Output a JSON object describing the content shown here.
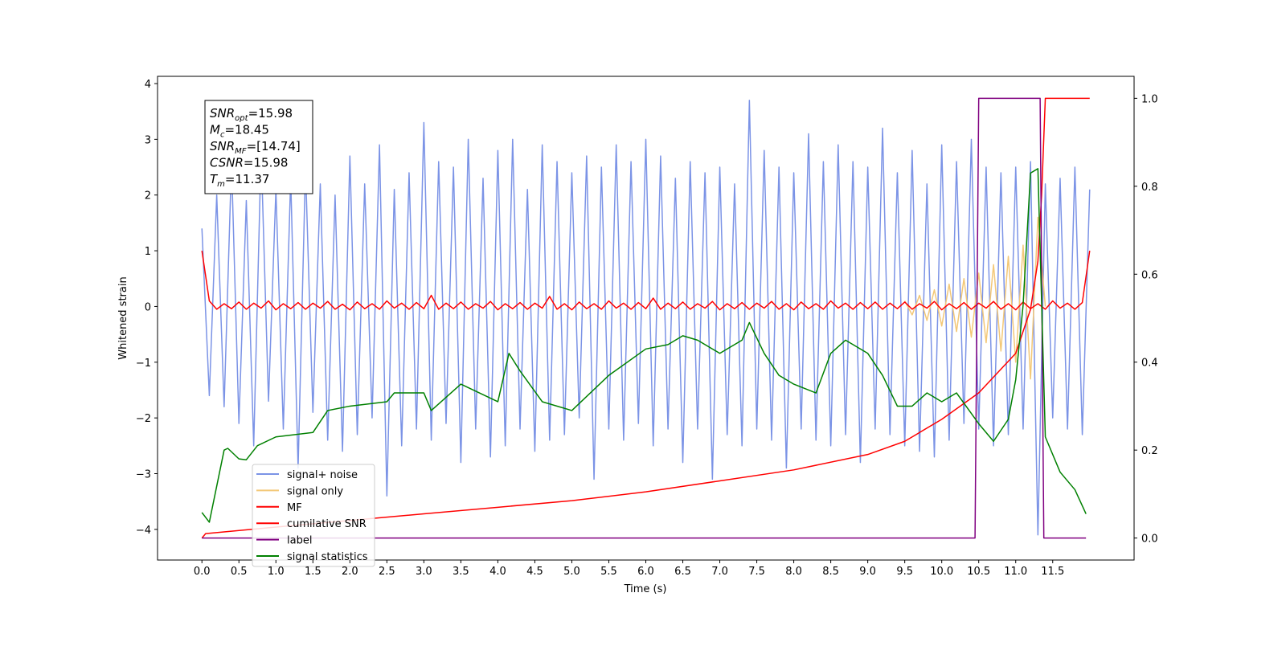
{
  "chart_data": {
    "type": "line",
    "xlabel": "Time (s)",
    "ylabel": "Whitened strain",
    "xlim": [
      -0.6,
      12.6
    ],
    "ylim": [
      -4.55,
      4.13
    ],
    "y2lim": [
      -0.05,
      1.05
    ],
    "xticks": [
      {
        "value": 0,
        "label": "0.0"
      },
      0.5,
      {
        "value": 1,
        "label": "1.0"
      },
      1.5,
      {
        "value": 2,
        "label": "2.0"
      },
      2.5,
      {
        "value": 3,
        "label": "3.0"
      },
      3.5,
      {
        "value": 4,
        "label": "4.0"
      },
      4.5,
      {
        "value": 5,
        "label": "5.0"
      },
      5.5,
      {
        "value": 6,
        "label": "6.0"
      },
      6.5,
      {
        "value": 7,
        "label": "7.0"
      },
      7.5,
      {
        "value": 8,
        "label": "8.0"
      },
      8.5,
      {
        "value": 9,
        "label": "9.0"
      },
      9.5,
      {
        "value": 10,
        "label": "10.0"
      },
      10.5,
      {
        "value": 11,
        "label": "11.0"
      },
      11.5
    ],
    "yticks": [
      {
        "value": -4,
        "label": "−4"
      },
      {
        "value": -3,
        "label": "−3"
      },
      {
        "value": -2,
        "label": "−2"
      },
      {
        "value": -1,
        "label": "−1"
      },
      0,
      1,
      2,
      3,
      4
    ],
    "y2ticks": [
      {
        "value": 0,
        "label": "0.0"
      },
      0.2,
      0.4,
      0.6,
      0.8,
      {
        "value": 1,
        "label": "1.0"
      }
    ],
    "legend": "lower left",
    "annotations": [
      {
        "symbol": "SNR",
        "subscript": "opt",
        "text": "=15.98"
      },
      {
        "symbol": "M",
        "subscript": "c",
        "text": "=18.45"
      },
      {
        "symbol": "SNR",
        "subscript": "MF",
        "text": "=[14.74]"
      },
      {
        "symbol": "CSNR",
        "text": "=15.98"
      },
      {
        "symbol": "T",
        "subscript": "m",
        "text": "=11.37"
      }
    ],
    "series": [
      {
        "name": "signal+ noise",
        "color": "#7b93e6",
        "x": [
          0,
          0.1,
          0.2,
          0.3,
          0.4,
          0.5,
          0.6,
          0.7,
          0.8,
          0.9,
          1,
          1.1,
          1.2,
          1.3,
          1.4,
          1.5,
          1.6,
          1.7,
          1.8,
          1.9,
          2,
          2.1,
          2.2,
          2.3,
          2.4,
          2.5,
          2.6,
          2.7,
          2.8,
          2.9,
          3,
          3.1,
          3.2,
          3.3,
          3.4,
          3.5,
          3.6,
          3.7,
          3.8,
          3.9,
          4,
          4.1,
          4.2,
          4.3,
          4.4,
          4.5,
          4.6,
          4.7,
          4.8,
          4.9,
          5,
          5.1,
          5.2,
          5.3,
          5.4,
          5.5,
          5.6,
          5.7,
          5.8,
          5.9,
          6,
          6.1,
          6.2,
          6.3,
          6.4,
          6.5,
          6.6,
          6.7,
          6.8,
          6.9,
          7,
          7.1,
          7.2,
          7.3,
          7.4,
          7.5,
          7.6,
          7.7,
          7.8,
          7.9,
          8,
          8.1,
          8.2,
          8.3,
          8.4,
          8.5,
          8.6,
          8.7,
          8.8,
          8.9,
          9,
          9.1,
          9.2,
          9.3,
          9.4,
          9.5,
          9.6,
          9.7,
          9.8,
          9.9,
          10,
          10.1,
          10.2,
          10.3,
          10.4,
          10.5,
          10.6,
          10.7,
          10.8,
          10.9,
          11,
          11.1,
          11.2,
          11.3,
          11.4,
          11.5,
          11.6,
          11.7,
          11.8,
          11.9,
          12
        ],
        "values": [
          1.4,
          -1.6,
          2.0,
          -1.8,
          2.6,
          -2.1,
          1.9,
          -2.5,
          2.8,
          -1.7,
          2.1,
          -2.2,
          2.3,
          -2.9,
          2.5,
          -1.9,
          2.2,
          -2.4,
          2.0,
          -2.6,
          2.7,
          -2.3,
          2.2,
          -2.0,
          2.9,
          -3.4,
          2.1,
          -2.5,
          2.4,
          -2.2,
          3.3,
          -2.4,
          2.6,
          -2.1,
          2.5,
          -2.8,
          3.0,
          -2.2,
          2.3,
          -2.7,
          2.8,
          -2.5,
          3.0,
          -2.2,
          2.1,
          -2.6,
          2.9,
          -2.4,
          2.6,
          -2.3,
          2.4,
          -2.0,
          2.7,
          -3.1,
          2.5,
          -2.2,
          2.9,
          -2.4,
          2.6,
          -2.1,
          3.0,
          -2.5,
          2.7,
          -2.2,
          2.3,
          -2.8,
          2.6,
          -2.2,
          2.4,
          -3.1,
          2.5,
          -2.3,
          2.2,
          -2.5,
          3.7,
          -2.2,
          2.8,
          -2.4,
          2.5,
          -2.9,
          2.4,
          -2.2,
          3.1,
          -2.4,
          2.6,
          -2.5,
          2.9,
          -2.3,
          2.6,
          -2.8,
          2.5,
          -2.2,
          3.2,
          -2.3,
          2.4,
          -2.5,
          2.8,
          -2.6,
          2.2,
          -2.7,
          2.9,
          -2.4,
          2.6,
          -2.1,
          3.0,
          -2.2,
          2.5,
          -2.5,
          2.4,
          -2.3,
          2.5,
          -2.2,
          2.6,
          -4.1,
          2.2,
          -2.0,
          2.3,
          -2.2,
          2.5,
          -2.3,
          2.1
        ]
      },
      {
        "name": "signal only",
        "color": "#f3c878",
        "x": [
          9.5,
          9.6,
          9.7,
          9.8,
          9.9,
          10,
          10.1,
          10.2,
          10.3,
          10.4,
          10.5,
          10.6,
          10.7,
          10.8,
          10.9,
          11,
          11.1,
          11.2,
          11.3,
          11.4
        ],
        "values": [
          0.1,
          -0.15,
          0.2,
          -0.25,
          0.3,
          -0.35,
          0.4,
          -0.45,
          0.5,
          -0.55,
          0.6,
          -0.65,
          0.75,
          -0.8,
          0.9,
          -1.0,
          1.1,
          -1.3,
          1.6,
          0
        ]
      },
      {
        "name": "MF",
        "color": "#ff0000",
        "x": [
          0,
          0.1,
          0.2,
          0.3,
          0.4,
          0.5,
          0.6,
          0.7,
          0.8,
          0.9,
          1,
          1.1,
          1.2,
          1.3,
          1.4,
          1.5,
          1.6,
          1.7,
          1.8,
          1.9,
          2,
          2.1,
          2.2,
          2.3,
          2.4,
          2.5,
          2.6,
          2.7,
          2.8,
          2.9,
          3,
          3.1,
          3.2,
          3.3,
          3.4,
          3.5,
          3.6,
          3.7,
          3.8,
          3.9,
          4,
          4.1,
          4.2,
          4.3,
          4.4,
          4.5,
          4.6,
          4.7,
          4.8,
          4.9,
          5,
          5.1,
          5.2,
          5.3,
          5.4,
          5.5,
          5.6,
          5.7,
          5.8,
          5.9,
          6,
          6.1,
          6.2,
          6.3,
          6.4,
          6.5,
          6.6,
          6.7,
          6.8,
          6.9,
          7,
          7.1,
          7.2,
          7.3,
          7.4,
          7.5,
          7.6,
          7.7,
          7.8,
          7.9,
          8,
          8.1,
          8.2,
          8.3,
          8.4,
          8.5,
          8.6,
          8.7,
          8.8,
          8.9,
          9,
          9.1,
          9.2,
          9.3,
          9.4,
          9.5,
          9.6,
          9.7,
          9.8,
          9.9,
          10,
          10.1,
          10.2,
          10.3,
          10.4,
          10.5,
          10.6,
          10.7,
          10.8,
          10.9,
          11,
          11.1,
          11.2,
          11.3,
          11.4,
          11.5,
          11.6,
          11.7,
          11.8,
          11.9,
          12
        ],
        "values": [
          1.0,
          0.1,
          -0.05,
          0.05,
          -0.04,
          0.08,
          -0.05,
          0.06,
          -0.03,
          0.1,
          -0.06,
          0.05,
          -0.04,
          0.07,
          -0.05,
          0.06,
          -0.03,
          0.09,
          -0.05,
          0.04,
          -0.06,
          0.08,
          -0.04,
          0.05,
          -0.05,
          0.1,
          -0.03,
          0.06,
          -0.05,
          0.07,
          -0.04,
          0.2,
          -0.05,
          0.06,
          -0.04,
          0.08,
          -0.05,
          0.05,
          -0.03,
          0.09,
          -0.06,
          0.05,
          -0.04,
          0.07,
          -0.05,
          0.06,
          -0.03,
          0.18,
          -0.05,
          0.05,
          -0.06,
          0.08,
          -0.04,
          0.05,
          -0.05,
          0.1,
          -0.03,
          0.06,
          -0.05,
          0.07,
          -0.04,
          0.15,
          -0.05,
          0.06,
          -0.04,
          0.08,
          -0.05,
          0.05,
          -0.03,
          0.09,
          -0.06,
          0.05,
          -0.04,
          0.07,
          -0.05,
          0.06,
          -0.03,
          0.09,
          -0.05,
          0.05,
          -0.06,
          0.08,
          -0.04,
          0.05,
          -0.05,
          0.1,
          -0.03,
          0.06,
          -0.05,
          0.07,
          -0.04,
          0.08,
          -0.05,
          0.06,
          -0.04,
          0.08,
          -0.05,
          0.05,
          -0.03,
          0.09,
          -0.06,
          0.05,
          -0.04,
          0.07,
          -0.05,
          0.06,
          -0.03,
          0.09,
          -0.05,
          0.05,
          -0.06,
          0.08,
          -0.04,
          0.05,
          -0.05,
          0.1,
          -0.03,
          0.06,
          -0.05,
          0.07,
          1.0
        ]
      },
      {
        "name": "cumilative SNR",
        "color": "#ff0000",
        "axis": "y2",
        "x": [
          0,
          0.05,
          1,
          2,
          3,
          4,
          5,
          6,
          7,
          8,
          9,
          9.5,
          10,
          10.5,
          11,
          11.2,
          11.3,
          11.35,
          11.4,
          12
        ],
        "values": [
          0,
          0.01,
          0.025,
          0.04,
          0.055,
          0.07,
          0.085,
          0.105,
          0.13,
          0.155,
          0.19,
          0.22,
          0.27,
          0.33,
          0.42,
          0.52,
          0.63,
          0.78,
          1.0,
          1.0
        ]
      },
      {
        "name": "label",
        "color": "#800080",
        "axis": "y2",
        "x": [
          0,
          10.45,
          10.5,
          11.33,
          11.38,
          11.95
        ],
        "values": [
          0,
          0,
          1,
          1,
          0,
          0
        ]
      },
      {
        "name": "signal statistics",
        "color": "#008000",
        "axis": "y2",
        "x": [
          0,
          0.1,
          0.3,
          0.35,
          0.5,
          0.6,
          0.75,
          1.0,
          1.5,
          1.7,
          2.0,
          2.5,
          2.6,
          3.0,
          3.1,
          3.5,
          4.0,
          4.15,
          4.3,
          4.6,
          5.0,
          5.5,
          6.0,
          6.3,
          6.5,
          6.7,
          7.0,
          7.3,
          7.4,
          7.6,
          7.8,
          8.0,
          8.3,
          8.5,
          8.7,
          9.0,
          9.2,
          9.4,
          9.6,
          9.8,
          10.0,
          10.2,
          10.5,
          10.7,
          10.9,
          11.0,
          11.1,
          11.2,
          11.3,
          11.4,
          11.6,
          11.8,
          11.95
        ],
        "values": [
          0.058,
          0.036,
          0.2,
          0.204,
          0.18,
          0.178,
          0.21,
          0.23,
          0.24,
          0.29,
          0.3,
          0.31,
          0.33,
          0.33,
          0.29,
          0.35,
          0.31,
          0.42,
          0.38,
          0.31,
          0.29,
          0.37,
          0.43,
          0.44,
          0.46,
          0.45,
          0.42,
          0.45,
          0.49,
          0.42,
          0.37,
          0.35,
          0.33,
          0.42,
          0.45,
          0.42,
          0.37,
          0.3,
          0.3,
          0.33,
          0.31,
          0.33,
          0.26,
          0.22,
          0.27,
          0.36,
          0.53,
          0.83,
          0.84,
          0.23,
          0.15,
          0.11,
          0.055
        ]
      }
    ]
  }
}
